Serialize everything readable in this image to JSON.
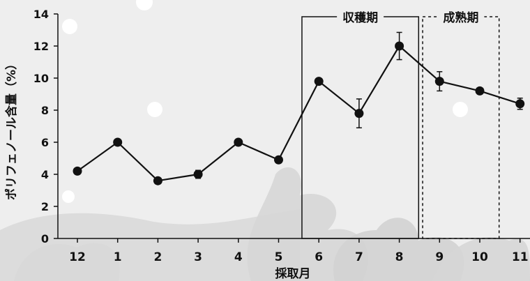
{
  "chart_data": {
    "type": "line",
    "categories": [
      "12",
      "1",
      "2",
      "3",
      "4",
      "5",
      "6",
      "7",
      "8",
      "9",
      "10",
      "11"
    ],
    "series": [
      {
        "values": [
          4.2,
          6.0,
          3.6,
          4.0,
          6.0,
          4.9,
          9.8,
          7.8,
          12.0,
          9.8,
          9.2,
          8.4
        ],
        "error": [
          0.1,
          0.1,
          0.1,
          0.25,
          0.1,
          0.1,
          0.1,
          0.9,
          0.85,
          0.6,
          0.1,
          0.35
        ]
      }
    ],
    "xlabel": "採取月",
    "ylabel": "ポリフェノール含量（%）",
    "ylim": [
      0,
      14
    ],
    "yticks": [
      0,
      2,
      4,
      6,
      8,
      10,
      12,
      14
    ],
    "periods": [
      {
        "label": "収穫期",
        "from_category": "6",
        "to_category": "8",
        "style": "solid"
      },
      {
        "label": "成熟期",
        "from_category": "9",
        "to_category": "10",
        "style": "dashed"
      }
    ],
    "grid": false,
    "legend": "none"
  },
  "colors": {
    "background": "#eeeeee",
    "line": "#111111",
    "marker": "#111111",
    "decor": "#d4d4d4"
  }
}
